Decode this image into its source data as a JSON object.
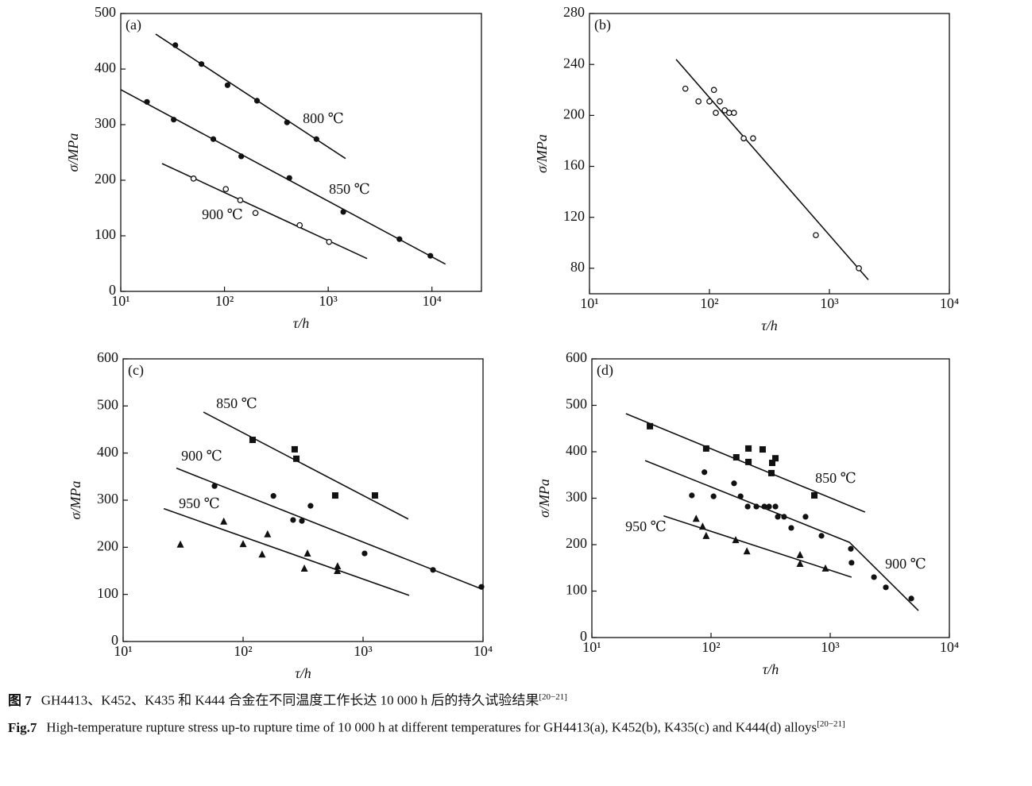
{
  "chart_data": [
    {
      "type": "scatter",
      "label": "(a)",
      "x_label": "τ/h",
      "y_label": "σ/MPa",
      "log_x": true,
      "xlim": [
        10,
        30000
      ],
      "xticks": [
        {
          "value": 10,
          "label": "10¹"
        },
        {
          "value": 100,
          "label": "10²"
        },
        {
          "value": 1000,
          "label": "10³"
        },
        {
          "value": 10000,
          "label": "10⁴"
        }
      ],
      "ylim": [
        0,
        500
      ],
      "yticks": [
        0,
        100,
        200,
        300,
        400,
        500
      ],
      "series": [
        {
          "name": "800 ℃",
          "marker": "filled-circle",
          "color": "#111111",
          "x": [
            33.6,
            60,
            107,
            206,
            401,
            770
          ],
          "y": [
            443,
            409,
            371,
            343,
            304,
            274
          ],
          "fit": {
            "x": [
              21.7,
              1470
            ],
            "y": [
              463,
              239
            ]
          }
        },
        {
          "name": "850 ℃",
          "marker": "filled-circle",
          "color": "#111111",
          "x": [
            17.9,
            32.4,
            78,
            145,
            422,
            1397,
            4860,
            9660
          ],
          "y": [
            341,
            309,
            274,
            243,
            204,
            143,
            94,
            64
          ],
          "fit": {
            "x": [
              10,
              13500
            ],
            "y": [
              363,
              49
            ]
          }
        },
        {
          "name": "900 ℃",
          "marker": "open-circle",
          "color": "#111111",
          "x": [
            50.3,
            103,
            142,
            199,
            531,
            1020
          ],
          "y": [
            203,
            184,
            164,
            141,
            119,
            89
          ],
          "fit": {
            "x": [
              25,
              2370
            ],
            "y": [
              230,
              59
            ]
          }
        }
      ]
    },
    {
      "type": "scatter",
      "label": "(b)",
      "x_label": "τ/h",
      "y_label": "σ/MPa",
      "log_x": true,
      "xlim": [
        10,
        10000
      ],
      "xticks": [
        {
          "value": 10,
          "label": "10¹"
        },
        {
          "value": 100,
          "label": "10²"
        },
        {
          "value": 1000,
          "label": "10³"
        },
        {
          "value": 10000,
          "label": "10⁴"
        }
      ],
      "ylim": [
        60,
        280
      ],
      "yticks": [
        80,
        120,
        160,
        200,
        240,
        280
      ],
      "series": [
        {
          "marker": "open-circle",
          "color": "#111111",
          "x": [
            63,
            81,
            100,
            109,
            113,
            122,
            134,
            146,
            160,
            193,
            231,
            771,
            1760
          ],
          "y": [
            221,
            211,
            211,
            220,
            202,
            211,
            204,
            202,
            202,
            182,
            182,
            106,
            80
          ],
          "fit": {
            "x": [
              52.7,
              2110
            ],
            "y": [
              244,
              71
            ]
          }
        }
      ]
    },
    {
      "type": "scatter",
      "label": "(c)",
      "x_label": "τ/h",
      "y_label": "σ/MPa",
      "log_x": true,
      "xlim": [
        10,
        10000
      ],
      "xticks": [
        {
          "value": 10,
          "label": "10¹"
        },
        {
          "value": 100,
          "label": "10²"
        },
        {
          "value": 1000,
          "label": "10³"
        },
        {
          "value": 10000,
          "label": "10⁴"
        }
      ],
      "ylim": [
        0,
        600
      ],
      "yticks": [
        0,
        100,
        200,
        300,
        400,
        500,
        600
      ],
      "series": [
        {
          "name": "850 ℃",
          "marker": "filled-square",
          "color": "#111111",
          "x": [
            120,
            269,
            278,
            586,
            1256
          ],
          "y": [
            428,
            408,
            388,
            310,
            310
          ],
          "fit": {
            "x": [
              46.7,
              2380
            ],
            "y": [
              487,
              260
            ]
          }
        },
        {
          "name": "900 ℃",
          "marker": "filled-circle",
          "color": "#111111",
          "x": [
            57.8,
            179,
            261,
            309,
            365,
            1030,
            3830,
            9700
          ],
          "y": [
            330,
            309,
            258,
            256,
            288,
            187,
            152,
            116
          ],
          "fit": {
            "x": [
              27.8,
              9840
            ],
            "y": [
              368,
              111
            ]
          }
        },
        {
          "name": "950 ℃",
          "marker": "filled-triangle",
          "color": "#111111",
          "x": [
            30,
            69,
            100,
            144,
            160,
            324,
            344,
            613,
            610
          ],
          "y": [
            206,
            255,
            207,
            185,
            228,
            155,
            187,
            160,
            150
          ],
          "fit": {
            "x": [
              21.8,
              2420
            ],
            "y": [
              282,
              98
            ]
          }
        }
      ]
    },
    {
      "type": "scatter",
      "label": "(d)",
      "x_label": "τ/h",
      "y_label": "σ/MPa",
      "log_x": true,
      "xlim": [
        10,
        10000
      ],
      "xticks": [
        {
          "value": 10,
          "label": "10¹"
        },
        {
          "value": 100,
          "label": "10²"
        },
        {
          "value": 1000,
          "label": "10³"
        },
        {
          "value": 10000,
          "label": "10⁴"
        }
      ],
      "ylim": [
        0,
        600
      ],
      "yticks": [
        0,
        100,
        200,
        300,
        400,
        500,
        600
      ],
      "series": [
        {
          "name": "850 ℃",
          "marker": "filled-square",
          "color": "#111111",
          "x": [
            30.7,
            91,
            163,
            206,
            206,
            271,
            326,
            347,
            321,
            736
          ],
          "y": [
            455,
            407,
            388,
            407,
            378,
            405,
            376,
            386,
            354,
            306
          ],
          "fit": {
            "x": [
              19.3,
              1960
            ],
            "y": [
              482,
              270
            ]
          }
        },
        {
          "name": "900 ℃",
          "marker": "filled-circle",
          "color": "#111111",
          "x": [
            88,
            69,
            105,
            156,
            177,
            203,
            240,
            280,
            307,
            347,
            363,
            410,
            471,
            621,
            845,
            1490,
            1510,
            2330,
            2930,
            4790
          ],
          "y": [
            356,
            306,
            304,
            332,
            304,
            282,
            282,
            282,
            282,
            282,
            260,
            260,
            236,
            260,
            219,
            191,
            161,
            130,
            108,
            84
          ],
          "fit": {
            "x": [
              28,
              1450,
              5500
            ],
            "y": [
              381,
              205,
              58
            ]
          }
        },
        {
          "name": "950 ℃",
          "marker": "filled-triangle",
          "color": "#111111",
          "x": [
            75,
            85,
            91,
            161,
            200,
            558,
            558,
            912
          ],
          "y": [
            256,
            239,
            219,
            210,
            186,
            178,
            159,
            149
          ],
          "fit": {
            "x": [
              40,
              1510
            ],
            "y": [
              262,
              130
            ]
          }
        }
      ]
    }
  ],
  "caption": {
    "cn": {
      "label": "图 7",
      "text": "GH4413、K452、K435 和 K444 合金在不同温度工作长达 10 000 h 后的持久试验结果",
      "ref": "[20−21]"
    },
    "en": {
      "label": "Fig.7",
      "text": "High-temperature rupture stress up-to rupture time of 10 000 h at different temperatures for GH4413(a), K452(b), K435(c) and K444(d) alloys",
      "ref": "[20−21]"
    }
  }
}
